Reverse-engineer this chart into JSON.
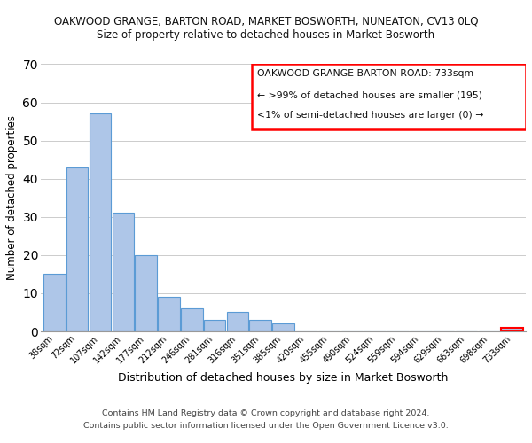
{
  "title_main": "OAKWOOD GRANGE, BARTON ROAD, MARKET BOSWORTH, NUNEATON, CV13 0LQ",
  "title_sub": "Size of property relative to detached houses in Market Bosworth",
  "xlabel": "Distribution of detached houses by size in Market Bosworth",
  "ylabel": "Number of detached properties",
  "bar_labels": [
    "38sqm",
    "72sqm",
    "107sqm",
    "142sqm",
    "177sqm",
    "212sqm",
    "246sqm",
    "281sqm",
    "316sqm",
    "351sqm",
    "385sqm",
    "420sqm",
    "455sqm",
    "490sqm",
    "524sqm",
    "559sqm",
    "594sqm",
    "629sqm",
    "663sqm",
    "698sqm",
    "733sqm"
  ],
  "bar_values": [
    15,
    43,
    57,
    31,
    20,
    9,
    6,
    3,
    5,
    3,
    2,
    0,
    0,
    0,
    0,
    0,
    0,
    0,
    0,
    0,
    1
  ],
  "bar_color": "#aec6e8",
  "bar_edge_color": "#5b9bd5",
  "ylim": [
    0,
    70
  ],
  "yticks": [
    0,
    10,
    20,
    30,
    40,
    50,
    60,
    70
  ],
  "legend_box_color": "#ff0000",
  "legend_title": "OAKWOOD GRANGE BARTON ROAD: 733sqm",
  "legend_line1": "← >99% of detached houses are smaller (195)",
  "legend_line2": "<1% of semi-detached houses are larger (0) →",
  "footer_line1": "Contains HM Land Registry data © Crown copyright and database right 2024.",
  "footer_line2": "Contains public sector information licensed under the Open Government Licence v3.0.",
  "bg_color": "#ffffff",
  "grid_color": "#cccccc",
  "highlight_bar_index": 20
}
